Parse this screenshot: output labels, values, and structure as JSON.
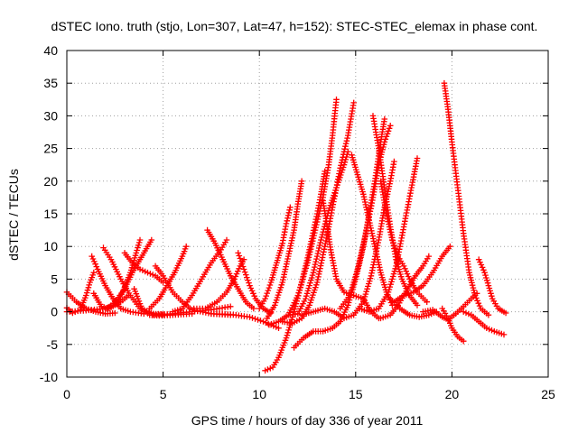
{
  "chart_data": {
    "type": "scatter",
    "title": "dSTEC Iono. truth (stjo, Lon=307, Lat=47, h=152): STEC-STEC_elemax in phase cont.",
    "xlabel": "GPS time / hours of day 336 of year 2011",
    "ylabel": "dSTEC  / TECUs",
    "xlim": [
      0,
      25
    ],
    "ylim": [
      -10,
      40
    ],
    "x_ticks": [
      "0",
      "5",
      "10",
      "15",
      "20",
      "25"
    ],
    "y_ticks": [
      "-10",
      "-5",
      "0",
      "5",
      "10",
      "15",
      "20",
      "25",
      "30",
      "35",
      "40"
    ],
    "grid": true,
    "marker": "plus",
    "color": "#ff0000",
    "series": [
      {
        "points": [
          [
            0.0,
            3.0
          ],
          [
            0.5,
            1.5
          ],
          [
            1.0,
            0.5
          ],
          [
            1.5,
            0.0
          ],
          [
            2.0,
            -0.3
          ],
          [
            2.5,
            -0.2
          ]
        ]
      },
      {
        "points": [
          [
            0.0,
            0.6
          ],
          [
            0.3,
            -0.2
          ],
          [
            0.7,
            0.3
          ],
          [
            1.0,
            2.5
          ],
          [
            1.2,
            4.5
          ],
          [
            1.4,
            6.0
          ]
        ]
      },
      {
        "points": [
          [
            0.0,
            0.0
          ],
          [
            1.0,
            0.2
          ],
          [
            2.0,
            0.5
          ],
          [
            2.8,
            1.5
          ],
          [
            3.2,
            2.5
          ]
        ]
      },
      {
        "points": [
          [
            1.3,
            8.5
          ],
          [
            1.6,
            6.5
          ],
          [
            2.0,
            4.0
          ],
          [
            2.4,
            2.0
          ],
          [
            2.8,
            0.5
          ],
          [
            3.3,
            0.0
          ],
          [
            4.0,
            -0.3
          ]
        ]
      },
      {
        "points": [
          [
            1.4,
            2.8
          ],
          [
            1.8,
            0.8
          ],
          [
            2.2,
            0.5
          ],
          [
            2.6,
            1.2
          ],
          [
            2.9,
            3.0
          ],
          [
            3.3,
            6.0
          ],
          [
            3.6,
            9.0
          ],
          [
            3.8,
            11.0
          ]
        ]
      },
      {
        "points": [
          [
            1.9,
            9.8
          ],
          [
            2.3,
            8.0
          ],
          [
            2.8,
            5.0
          ],
          [
            3.3,
            2.5
          ],
          [
            3.8,
            0.5
          ],
          [
            4.5,
            -0.3
          ],
          [
            5.0,
            -0.4
          ]
        ]
      },
      {
        "points": [
          [
            2.1,
            0.5
          ],
          [
            2.5,
            1.5
          ],
          [
            3.0,
            3.5
          ],
          [
            3.4,
            6.0
          ],
          [
            3.8,
            8.0
          ],
          [
            4.2,
            10.0
          ],
          [
            4.4,
            11.0
          ]
        ]
      },
      {
        "points": [
          [
            3.0,
            9.0
          ],
          [
            3.4,
            7.5
          ],
          [
            3.8,
            6.5
          ],
          [
            4.2,
            6.0
          ],
          [
            4.6,
            5.5
          ],
          [
            5.0,
            4.5
          ]
        ]
      },
      {
        "points": [
          [
            3.5,
            3.5
          ],
          [
            3.9,
            0.5
          ],
          [
            4.3,
            -0.5
          ],
          [
            4.8,
            -0.6
          ],
          [
            5.5,
            -0.5
          ],
          [
            6.5,
            -0.3
          ]
        ]
      },
      {
        "points": [
          [
            4.6,
            7.0
          ],
          [
            5.0,
            5.5
          ],
          [
            5.5,
            3.0
          ],
          [
            6.0,
            1.5
          ],
          [
            6.5,
            0.3
          ],
          [
            7.5,
            -0.3
          ],
          [
            8.5,
            -0.5
          ]
        ]
      },
      {
        "points": [
          [
            4.3,
            0.5
          ],
          [
            4.8,
            2.0
          ],
          [
            5.2,
            4.0
          ],
          [
            5.6,
            6.0
          ],
          [
            6.0,
            8.5
          ],
          [
            6.2,
            10.0
          ]
        ]
      },
      {
        "points": [
          [
            4.5,
            -0.5
          ],
          [
            5.5,
            -0.3
          ],
          [
            6.5,
            0.0
          ],
          [
            7.5,
            0.3
          ],
          [
            8.5,
            0.8
          ]
        ]
      },
      {
        "points": [
          [
            5.5,
            0.0
          ],
          [
            6.0,
            0.5
          ],
          [
            6.5,
            2.5
          ],
          [
            7.0,
            5.0
          ],
          [
            7.5,
            7.5
          ],
          [
            8.0,
            9.5
          ],
          [
            8.3,
            11.0
          ]
        ]
      },
      {
        "points": [
          [
            7.3,
            12.5
          ],
          [
            7.7,
            10.5
          ],
          [
            8.1,
            8.0
          ],
          [
            8.5,
            5.5
          ],
          [
            8.9,
            3.5
          ],
          [
            9.3,
            1.5
          ],
          [
            9.7,
            0.5
          ]
        ]
      },
      {
        "points": [
          [
            6.6,
            0.5
          ],
          [
            7.2,
            0.5
          ],
          [
            7.8,
            1.5
          ],
          [
            8.3,
            3.0
          ],
          [
            8.7,
            5.0
          ],
          [
            9.0,
            7.0
          ],
          [
            9.2,
            8.0
          ]
        ]
      },
      {
        "points": [
          [
            8.9,
            9.0
          ],
          [
            9.2,
            6.5
          ],
          [
            9.5,
            4.0
          ],
          [
            9.8,
            2.0
          ],
          [
            10.2,
            0.5
          ],
          [
            10.6,
            -0.2
          ]
        ]
      },
      {
        "points": [
          [
            7.5,
            -0.3
          ],
          [
            8.5,
            -0.4
          ],
          [
            9.5,
            -0.8
          ],
          [
            10.2,
            -1.5
          ],
          [
            10.6,
            -2.0
          ],
          [
            11.0,
            -2.5
          ]
        ]
      },
      {
        "points": [
          [
            10.0,
            0.5
          ],
          [
            10.3,
            2.0
          ],
          [
            10.6,
            4.5
          ],
          [
            10.9,
            7.5
          ],
          [
            11.2,
            10.5
          ],
          [
            11.4,
            13.5
          ],
          [
            11.6,
            16.0
          ]
        ]
      },
      {
        "points": [
          [
            10.4,
            -1.0
          ],
          [
            10.8,
            1.0
          ],
          [
            11.2,
            4.5
          ],
          [
            11.5,
            8.5
          ],
          [
            11.8,
            12.5
          ],
          [
            12.0,
            16.5
          ],
          [
            12.2,
            20.0
          ]
        ]
      },
      {
        "points": [
          [
            10.3,
            -9.0
          ],
          [
            10.7,
            -8.5
          ],
          [
            11.0,
            -7.0
          ],
          [
            11.4,
            -4.0
          ],
          [
            11.8,
            0.0
          ],
          [
            12.2,
            4.5
          ],
          [
            12.6,
            9.5
          ],
          [
            13.0,
            15.0
          ],
          [
            13.2,
            18.0
          ],
          [
            13.4,
            21.5
          ]
        ]
      },
      {
        "points": [
          [
            10.5,
            -2.0
          ],
          [
            11.0,
            -1.5
          ],
          [
            11.5,
            -0.5
          ],
          [
            12.0,
            2.5
          ],
          [
            12.5,
            7.5
          ],
          [
            12.9,
            12.5
          ],
          [
            13.3,
            17.5
          ],
          [
            13.6,
            22.5
          ],
          [
            13.8,
            27.0
          ],
          [
            14.0,
            32.5
          ]
        ]
      },
      {
        "points": [
          [
            11.2,
            -1.5
          ],
          [
            11.7,
            -1.8
          ],
          [
            12.2,
            -1.0
          ],
          [
            12.6,
            1.0
          ],
          [
            13.0,
            4.5
          ],
          [
            13.4,
            10.0
          ],
          [
            13.8,
            16.0
          ],
          [
            14.2,
            22.0
          ],
          [
            14.6,
            27.0
          ],
          [
            14.9,
            32.0
          ]
        ]
      },
      {
        "points": [
          [
            11.6,
            -0.5
          ],
          [
            12.0,
            -0.3
          ],
          [
            12.4,
            2.0
          ],
          [
            12.8,
            6.0
          ],
          [
            13.2,
            11.0
          ],
          [
            13.6,
            15.5
          ],
          [
            14.0,
            19.0
          ],
          [
            14.4,
            22.5
          ],
          [
            14.6,
            24.5
          ]
        ]
      },
      {
        "points": [
          [
            11.8,
            -5.5
          ],
          [
            12.3,
            -4.0
          ],
          [
            12.8,
            -3.0
          ],
          [
            13.3,
            -3.0
          ],
          [
            13.8,
            -2.5
          ],
          [
            14.2,
            -1.5
          ],
          [
            14.6,
            1.0
          ],
          [
            15.0,
            5.0
          ],
          [
            15.4,
            10.0
          ],
          [
            15.7,
            15.0
          ],
          [
            16.0,
            20.0
          ],
          [
            16.3,
            26.0
          ],
          [
            16.5,
            29.5
          ]
        ]
      },
      {
        "points": [
          [
            12.2,
            -0.5
          ],
          [
            12.8,
            0.0
          ],
          [
            13.4,
            0.5
          ],
          [
            13.9,
            0.0
          ],
          [
            14.4,
            -1.0
          ],
          [
            14.9,
            -0.5
          ],
          [
            15.4,
            1.5
          ],
          [
            15.8,
            5.5
          ],
          [
            16.2,
            11.0
          ],
          [
            16.5,
            16.0
          ],
          [
            16.8,
            20.0
          ],
          [
            17.0,
            23.0
          ]
        ]
      },
      {
        "points": [
          [
            13.3,
            17.0
          ],
          [
            13.5,
            13.5
          ],
          [
            13.7,
            9.5
          ],
          [
            14.0,
            5.0
          ],
          [
            14.4,
            3.0
          ],
          [
            14.9,
            2.5
          ],
          [
            15.4,
            2.0
          ],
          [
            15.8,
            0.0
          ],
          [
            16.2,
            -1.0
          ]
        ]
      },
      {
        "points": [
          [
            14.8,
            24.0
          ],
          [
            15.1,
            21.0
          ],
          [
            15.4,
            18.0
          ],
          [
            15.7,
            14.0
          ],
          [
            16.0,
            10.0
          ],
          [
            16.3,
            6.0
          ],
          [
            16.6,
            3.0
          ],
          [
            16.9,
            1.0
          ]
        ]
      },
      {
        "points": [
          [
            14.2,
            0.5
          ],
          [
            14.7,
            2.5
          ],
          [
            15.1,
            6.5
          ],
          [
            15.5,
            11.5
          ],
          [
            15.9,
            17.5
          ],
          [
            16.2,
            22.5
          ],
          [
            16.5,
            26.0
          ],
          [
            16.8,
            28.5
          ]
        ]
      },
      {
        "points": [
          [
            15.9,
            30.0
          ],
          [
            16.2,
            25.0
          ],
          [
            16.5,
            19.0
          ],
          [
            16.8,
            13.0
          ],
          [
            17.1,
            8.0
          ],
          [
            17.4,
            5.0
          ],
          [
            17.8,
            2.5
          ],
          [
            18.2,
            1.0
          ]
        ]
      },
      {
        "points": [
          [
            16.3,
            20.0
          ],
          [
            16.6,
            15.0
          ],
          [
            16.9,
            11.0
          ],
          [
            17.2,
            8.5
          ],
          [
            17.5,
            7.0
          ],
          [
            17.8,
            5.0
          ],
          [
            18.2,
            3.0
          ],
          [
            18.7,
            1.5
          ]
        ]
      },
      {
        "points": [
          [
            15.2,
            0.5
          ],
          [
            15.7,
            0.0
          ],
          [
            16.2,
            0.5
          ],
          [
            16.7,
            3.0
          ],
          [
            17.1,
            7.0
          ],
          [
            17.5,
            13.0
          ],
          [
            17.9,
            19.0
          ],
          [
            18.2,
            23.5
          ]
        ]
      },
      {
        "points": [
          [
            16.3,
            -1.0
          ],
          [
            16.8,
            -0.5
          ],
          [
            17.2,
            1.0
          ],
          [
            17.7,
            3.5
          ],
          [
            18.1,
            5.5
          ],
          [
            18.5,
            7.0
          ],
          [
            18.8,
            8.5
          ]
        ]
      },
      {
        "points": [
          [
            16.8,
            2.0
          ],
          [
            17.3,
            0.5
          ],
          [
            17.8,
            -0.5
          ],
          [
            18.3,
            -0.8
          ],
          [
            18.8,
            -0.5
          ],
          [
            19.2,
            0.0
          ]
        ]
      },
      {
        "points": [
          [
            17.0,
            1.5
          ],
          [
            17.5,
            2.5
          ],
          [
            18.0,
            3.0
          ],
          [
            18.5,
            4.0
          ],
          [
            19.0,
            6.0
          ],
          [
            19.5,
            8.5
          ],
          [
            19.9,
            10.0
          ]
        ]
      },
      {
        "points": [
          [
            19.6,
            35.0
          ],
          [
            19.8,
            31.0
          ],
          [
            20.0,
            26.0
          ],
          [
            20.3,
            19.0
          ],
          [
            20.6,
            12.0
          ],
          [
            20.9,
            6.0
          ],
          [
            21.2,
            2.5
          ],
          [
            21.5,
            0.5
          ],
          [
            21.9,
            -0.5
          ]
        ]
      },
      {
        "points": [
          [
            18.5,
            0.0
          ],
          [
            19.0,
            0.3
          ],
          [
            19.5,
            -0.8
          ],
          [
            19.8,
            -1.2
          ],
          [
            20.2,
            -0.3
          ],
          [
            20.6,
            0.8
          ],
          [
            21.0,
            2.0
          ],
          [
            21.3,
            2.8
          ]
        ]
      },
      {
        "points": [
          [
            19.5,
            0.5
          ],
          [
            19.8,
            -1.0
          ],
          [
            20.0,
            -2.5
          ],
          [
            20.3,
            -3.8
          ],
          [
            20.6,
            -4.5
          ]
        ]
      },
      {
        "points": [
          [
            21.4,
            8.0
          ],
          [
            21.7,
            6.0
          ],
          [
            21.9,
            4.0
          ],
          [
            22.1,
            2.0
          ],
          [
            22.4,
            0.5
          ],
          [
            22.8,
            -0.2
          ]
        ]
      },
      {
        "points": [
          [
            20.6,
            0.0
          ],
          [
            21.0,
            -0.5
          ],
          [
            21.4,
            -1.5
          ],
          [
            21.8,
            -2.5
          ],
          [
            22.2,
            -3.0
          ],
          [
            22.7,
            -3.5
          ]
        ]
      }
    ]
  }
}
